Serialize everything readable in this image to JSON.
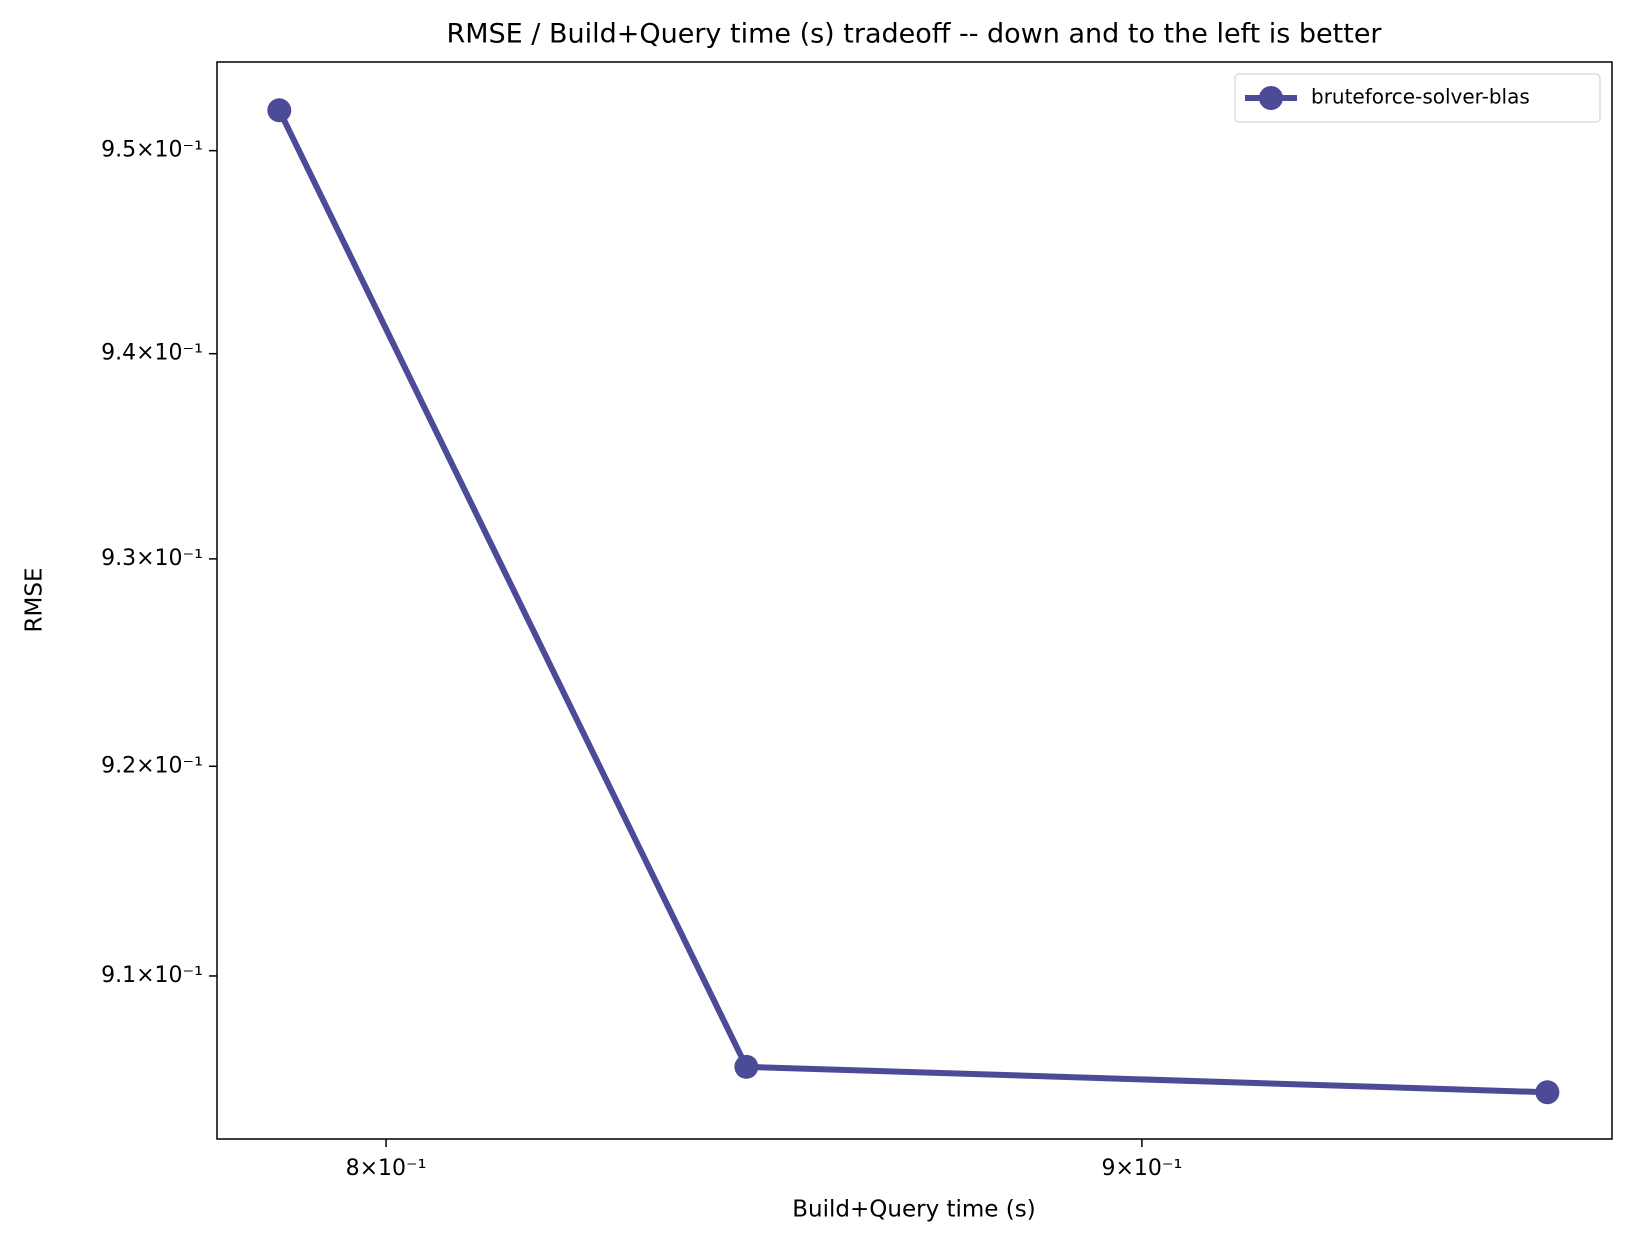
{
  "chart_data": {
    "type": "line",
    "title": "RMSE / Build+Query time (s) tradeoff -- down and to the left is better",
    "x_label": "Build+Query time (s)",
    "y_label": "RMSE",
    "x": [
      0.7868,
      0.8462,
      0.9587
    ],
    "series": [
      {
        "name": "bruteforce-solver-blas",
        "color": "#4b4b98",
        "values": [
          0.952,
          0.9057,
          0.9045
        ]
      }
    ],
    "xscale": "log",
    "yscale": "log",
    "xlim": [
      0.7792,
      0.9684
    ],
    "ylim": [
      0.9023,
      0.9544
    ],
    "xticks": [
      {
        "value": 0.8,
        "label": "8×10⁻¹"
      },
      {
        "value": 0.9,
        "label": "9×10⁻¹"
      }
    ],
    "yticks": [
      {
        "value": 0.91,
        "label": "9.1×10⁻¹"
      },
      {
        "value": 0.92,
        "label": "9.2×10⁻¹"
      },
      {
        "value": 0.93,
        "label": "9.3×10⁻¹"
      },
      {
        "value": 0.94,
        "label": "9.4×10⁻¹"
      },
      {
        "value": 0.95,
        "label": "9.5×10⁻¹"
      }
    ],
    "grid": false,
    "legend": "upper right"
  }
}
